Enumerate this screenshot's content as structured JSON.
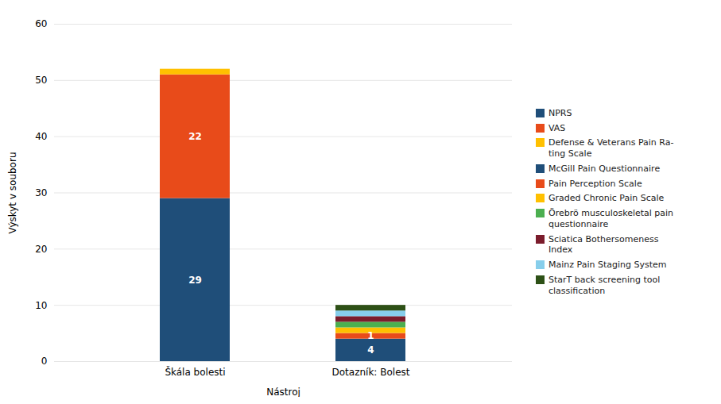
{
  "chart_data": {
    "type": "bar",
    "stacked": true,
    "categories": [
      "Škála bolesti",
      "Dotazník: Bolest"
    ],
    "series": [
      {
        "name": "NPRS",
        "color": "#1F4E79",
        "values": [
          29,
          0
        ]
      },
      {
        "name": "VAS",
        "color": "#E84B1A",
        "values": [
          22,
          0
        ]
      },
      {
        "name": "Defense & Veterans Pain Ra-\nting Scale",
        "color": "#FFC000",
        "values": [
          1,
          0
        ]
      },
      {
        "name": "McGill Pain Questionnaire",
        "color": "#1F4E79",
        "values": [
          0,
          4
        ]
      },
      {
        "name": "Pain Perception Scale",
        "color": "#E84B1A",
        "values": [
          0,
          1
        ]
      },
      {
        "name": "Graded Chronic Pain Scale",
        "color": "#FFC000",
        "values": [
          0,
          1
        ]
      },
      {
        "name": "Örebrö musculoskeletal pain\nquestionnaire",
        "color": "#4CAF50",
        "values": [
          0,
          1
        ]
      },
      {
        "name": "Sciatica Bothersomeness\nIndex",
        "color": "#7B1C2C",
        "values": [
          0,
          1
        ]
      },
      {
        "name": "Mainz Pain Staging System",
        "color": "#87CEEB",
        "values": [
          0,
          1
        ]
      },
      {
        "name": "StarT back screening tool\nclassification",
        "color": "#2D5016",
        "values": [
          0,
          1
        ]
      }
    ],
    "annotations": [
      {
        "text": "29",
        "category": "Škála bolesti",
        "series": "NPRS"
      },
      {
        "text": "22",
        "category": "Škála bolesti",
        "series": "VAS"
      },
      {
        "text": "4",
        "category": "Dotazník: Bolest",
        "series": "McGill Pain Questionnaire"
      },
      {
        "text": "1",
        "category": "Dotazník: Bolest",
        "series": "Pain Perception Scale"
      }
    ],
    "xlabel": "Nástroj",
    "ylabel": "Výskyt v souboru",
    "ylim": [
      0,
      60
    ],
    "yticks": [
      0,
      10,
      20,
      30,
      40,
      50,
      60
    ],
    "grid": true,
    "legend": "right"
  }
}
